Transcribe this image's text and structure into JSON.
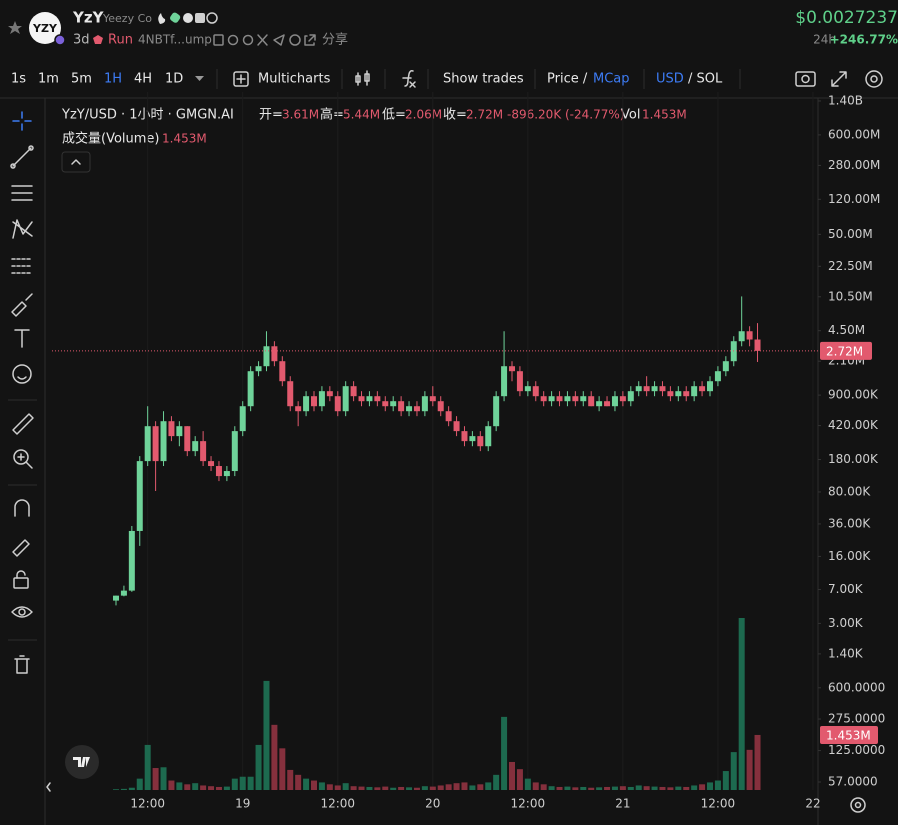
{
  "header": {
    "avatar": "YZY",
    "name": "YzY",
    "full_name": "Yeezy Co",
    "age": "3d",
    "status": "Run",
    "address": "4NBTf...ump",
    "share": "分享",
    "price": "$0.0027237",
    "change_period": "24h",
    "change": "+246.77%"
  },
  "toolbar": {
    "intervals": [
      "1s",
      "1m",
      "5m",
      "1H",
      "4H",
      "1D"
    ],
    "active_interval": 3,
    "multicharts": "Multicharts",
    "show_trades": "Show trades",
    "price_mode": {
      "left": "Price /",
      "right": "MCap"
    },
    "currency": {
      "left": "USD",
      "right": "/ SOL"
    }
  },
  "legend": {
    "symbol": "YzY/USD · 1小时 · GMGN.AI",
    "fields": [
      {
        "label": "开=",
        "value": "3.61M"
      },
      {
        "label": "高=",
        "value": "5.44M"
      },
      {
        "label": "低=",
        "value": "2.06M"
      },
      {
        "label": "收=",
        "value": "2.72M"
      }
    ],
    "change": "-896.20K (-24.77%)",
    "volume_label": "Vol"
  },
  "chart_data": {
    "type": "candlestick",
    "log_scale": true,
    "grid": {
      "x": true,
      "y": false
    },
    "ylim": [
      44.4,
      1752000000
    ],
    "yticks": [
      {
        "value": 1400000000,
        "label": "1.40B"
      },
      {
        "value": 600000000,
        "label": "600.00M"
      },
      {
        "value": 280000000,
        "label": "280.00M"
      },
      {
        "value": 120000000,
        "label": "120.00M"
      },
      {
        "value": 50000000,
        "label": "50.00M"
      },
      {
        "value": 22500000,
        "label": "22.50M"
      },
      {
        "value": 10500000,
        "label": "10.50M"
      },
      {
        "value": 4500000,
        "label": "4.50M"
      },
      {
        "value": 2100000,
        "label": "2.10M"
      },
      {
        "value": 900000,
        "label": "900.00K"
      },
      {
        "value": 420000,
        "label": "420.00K"
      },
      {
        "value": 180000,
        "label": "180.00K"
      },
      {
        "value": 80000,
        "label": "80.00K"
      },
      {
        "value": 36000,
        "label": "36.00K"
      },
      {
        "value": 16000,
        "label": "16.00K"
      },
      {
        "value": 7000,
        "label": "7.00K"
      },
      {
        "value": 3000,
        "label": "3.00K"
      },
      {
        "value": 1400,
        "label": "1.40K"
      },
      {
        "value": 600,
        "label": "600.0000"
      },
      {
        "value": 275,
        "label": "275.0000"
      },
      {
        "value": 125,
        "label": "125.0000"
      },
      {
        "value": 57,
        "label": "57.0000"
      }
    ],
    "categories": [
      null,
      null,
      null,
      null,
      "12:00",
      null,
      null,
      null,
      null,
      null,
      null,
      null,
      null,
      null,
      null,
      null,
      "19",
      null,
      null,
      null,
      null,
      null,
      null,
      null,
      null,
      null,
      null,
      null,
      "12:00",
      null,
      null,
      null,
      null,
      null,
      null,
      null,
      null,
      null,
      null,
      null,
      "20",
      null,
      null,
      null,
      null,
      null,
      null,
      null,
      null,
      null,
      null,
      null,
      "12:00",
      null,
      null,
      null,
      null,
      null,
      null,
      null,
      null,
      null,
      null,
      null,
      "21",
      null,
      null,
      null,
      null,
      null,
      null,
      null,
      null,
      null,
      null,
      null,
      "12:00",
      null,
      null,
      null,
      null,
      null,
      null,
      null,
      null,
      null,
      null,
      null,
      "22"
    ],
    "series": [
      {
        "name": "YzY/USD",
        "up_color": "#6fd39a",
        "down_color": "#e25a6e",
        "open": [
          5300,
          6000,
          6800,
          30200,
          173000,
          414000,
          173000,
          469000,
          323000,
          414000,
          222000,
          285000,
          173000,
          153000,
          119000,
          135000,
          366000,
          682000,
          1636000,
          1853000,
          3050000,
          2100000,
          1274000,
          682000,
          602000,
          876000,
          682000,
          993000,
          876000,
          602000,
          1125000,
          876000,
          773000,
          876000,
          773000,
          682000,
          773000,
          602000,
          682000,
          602000,
          876000,
          773000,
          602000,
          469000,
          366000,
          285000,
          323000,
          251000,
          414000,
          876000,
          1853000,
          1636000,
          993000,
          1125000,
          876000,
          773000,
          876000,
          773000,
          876000,
          773000,
          876000,
          682000,
          773000,
          682000,
          876000,
          773000,
          993000,
          1125000,
          993000,
          1125000,
          993000,
          876000,
          993000,
          876000,
          1125000,
          993000,
          1274000,
          1636000,
          2100000,
          3460000,
          4440000,
          3610000,
          null,
          null,
          null,
          null,
          null,
          null,
          null
        ],
        "high": [
          6000,
          7700,
          34200,
          196000,
          682000,
          469000,
          602000,
          532000,
          469000,
          414000,
          323000,
          366000,
          196000,
          173000,
          153000,
          414000,
          773000,
          1853000,
          2100000,
          4440000,
          3460000,
          2380000,
          1444000,
          773000,
          993000,
          993000,
          1125000,
          1125000,
          993000,
          1274000,
          1274000,
          993000,
          993000,
          993000,
          876000,
          876000,
          876000,
          773000,
          773000,
          993000,
          1125000,
          876000,
          682000,
          532000,
          414000,
          366000,
          366000,
          469000,
          993000,
          4440000,
          2100000,
          1853000,
          1274000,
          1274000,
          993000,
          993000,
          993000,
          993000,
          993000,
          993000,
          993000,
          876000,
          876000,
          993000,
          993000,
          1125000,
          1274000,
          1444000,
          1274000,
          1274000,
          1125000,
          1125000,
          1125000,
          1274000,
          1274000,
          1444000,
          1853000,
          2380000,
          3920000,
          10600000,
          5030000,
          5440000,
          null,
          null,
          null,
          null,
          null,
          null,
          null
        ],
        "low": [
          4700,
          5900,
          6600,
          20800,
          153000,
          82000,
          153000,
          285000,
          251000,
          196000,
          196000,
          153000,
          135000,
          105000,
          105000,
          119000,
          323000,
          602000,
          1444000,
          1636000,
          1853000,
          1125000,
          602000,
          414000,
          532000,
          602000,
          602000,
          773000,
          532000,
          532000,
          773000,
          682000,
          682000,
          682000,
          602000,
          602000,
          532000,
          532000,
          532000,
          532000,
          682000,
          532000,
          414000,
          323000,
          251000,
          251000,
          222000,
          222000,
          366000,
          773000,
          1274000,
          876000,
          876000,
          773000,
          682000,
          682000,
          682000,
          682000,
          682000,
          682000,
          682000,
          602000,
          682000,
          602000,
          682000,
          682000,
          876000,
          876000,
          876000,
          876000,
          773000,
          773000,
          773000,
          773000,
          876000,
          876000,
          1125000,
          1444000,
          1853000,
          3050000,
          3050000,
          2060000,
          null,
          null,
          null,
          null,
          null,
          null,
          null
        ],
        "close": [
          6000,
          6800,
          30200,
          173000,
          414000,
          173000,
          469000,
          323000,
          414000,
          222000,
          285000,
          173000,
          153000,
          119000,
          135000,
          366000,
          682000,
          1636000,
          1853000,
          3050000,
          2100000,
          1274000,
          682000,
          602000,
          876000,
          682000,
          993000,
          876000,
          602000,
          1125000,
          876000,
          773000,
          876000,
          773000,
          682000,
          773000,
          602000,
          682000,
          602000,
          876000,
          773000,
          602000,
          469000,
          366000,
          285000,
          323000,
          251000,
          414000,
          876000,
          1853000,
          1636000,
          993000,
          1125000,
          876000,
          773000,
          876000,
          773000,
          876000,
          773000,
          876000,
          682000,
          773000,
          682000,
          876000,
          773000,
          993000,
          1125000,
          993000,
          1125000,
          993000,
          876000,
          993000,
          876000,
          1125000,
          993000,
          1274000,
          1636000,
          2100000,
          3460000,
          4440000,
          3610000,
          2720000,
          null,
          null,
          null,
          null,
          null,
          null,
          null
        ]
      }
    ],
    "volume": {
      "name": "成交量(Volume)",
      "up_color": "#1d6a4f",
      "down_color": "#85303d",
      "values": [
        20000,
        30000,
        60000,
        300000,
        1190000,
        580000,
        600000,
        250000,
        200000,
        150000,
        180000,
        120000,
        100000,
        80000,
        90000,
        300000,
        350000,
        350000,
        1190000,
        2880000,
        1720000,
        1100000,
        530000,
        400000,
        300000,
        250000,
        200000,
        150000,
        120000,
        180000,
        100000,
        90000,
        80000,
        70000,
        90000,
        60000,
        80000,
        70000,
        60000,
        100000,
        90000,
        120000,
        150000,
        180000,
        200000,
        120000,
        150000,
        200000,
        400000,
        1930000,
        740000,
        550000,
        300000,
        200000,
        150000,
        100000,
        80000,
        90000,
        70000,
        80000,
        60000,
        70000,
        80000,
        90000,
        100000,
        80000,
        120000,
        100000,
        90000,
        80000,
        70000,
        90000,
        80000,
        120000,
        150000,
        200000,
        250000,
        500000,
        1000000,
        4540000,
        1060000,
        1453000,
        null,
        null,
        null,
        null,
        null,
        null,
        null
      ],
      "value_labels": [
        null,
        null,
        null,
        null,
        null,
        null,
        null,
        null,
        null,
        null,
        null,
        null,
        null,
        null,
        null,
        null,
        null,
        null,
        null,
        null,
        null,
        null,
        null,
        null,
        null,
        null,
        null,
        null,
        null,
        null,
        null,
        null,
        null,
        null,
        null,
        null,
        null,
        null,
        null,
        null,
        null,
        null,
        null,
        null,
        null,
        null,
        null,
        null,
        null,
        null,
        null,
        null,
        null,
        null,
        null,
        null,
        null,
        null,
        null,
        null,
        null,
        null,
        null,
        null,
        null,
        null,
        null,
        null,
        null,
        null,
        null,
        null,
        null,
        null,
        null,
        null,
        null,
        null,
        null,
        null,
        null,
        "1.453M",
        null,
        null,
        null,
        null,
        null,
        null,
        null
      ]
    },
    "current_price": {
      "value": 2720000,
      "label": "2.72M",
      "color": "#e25a6e"
    }
  }
}
